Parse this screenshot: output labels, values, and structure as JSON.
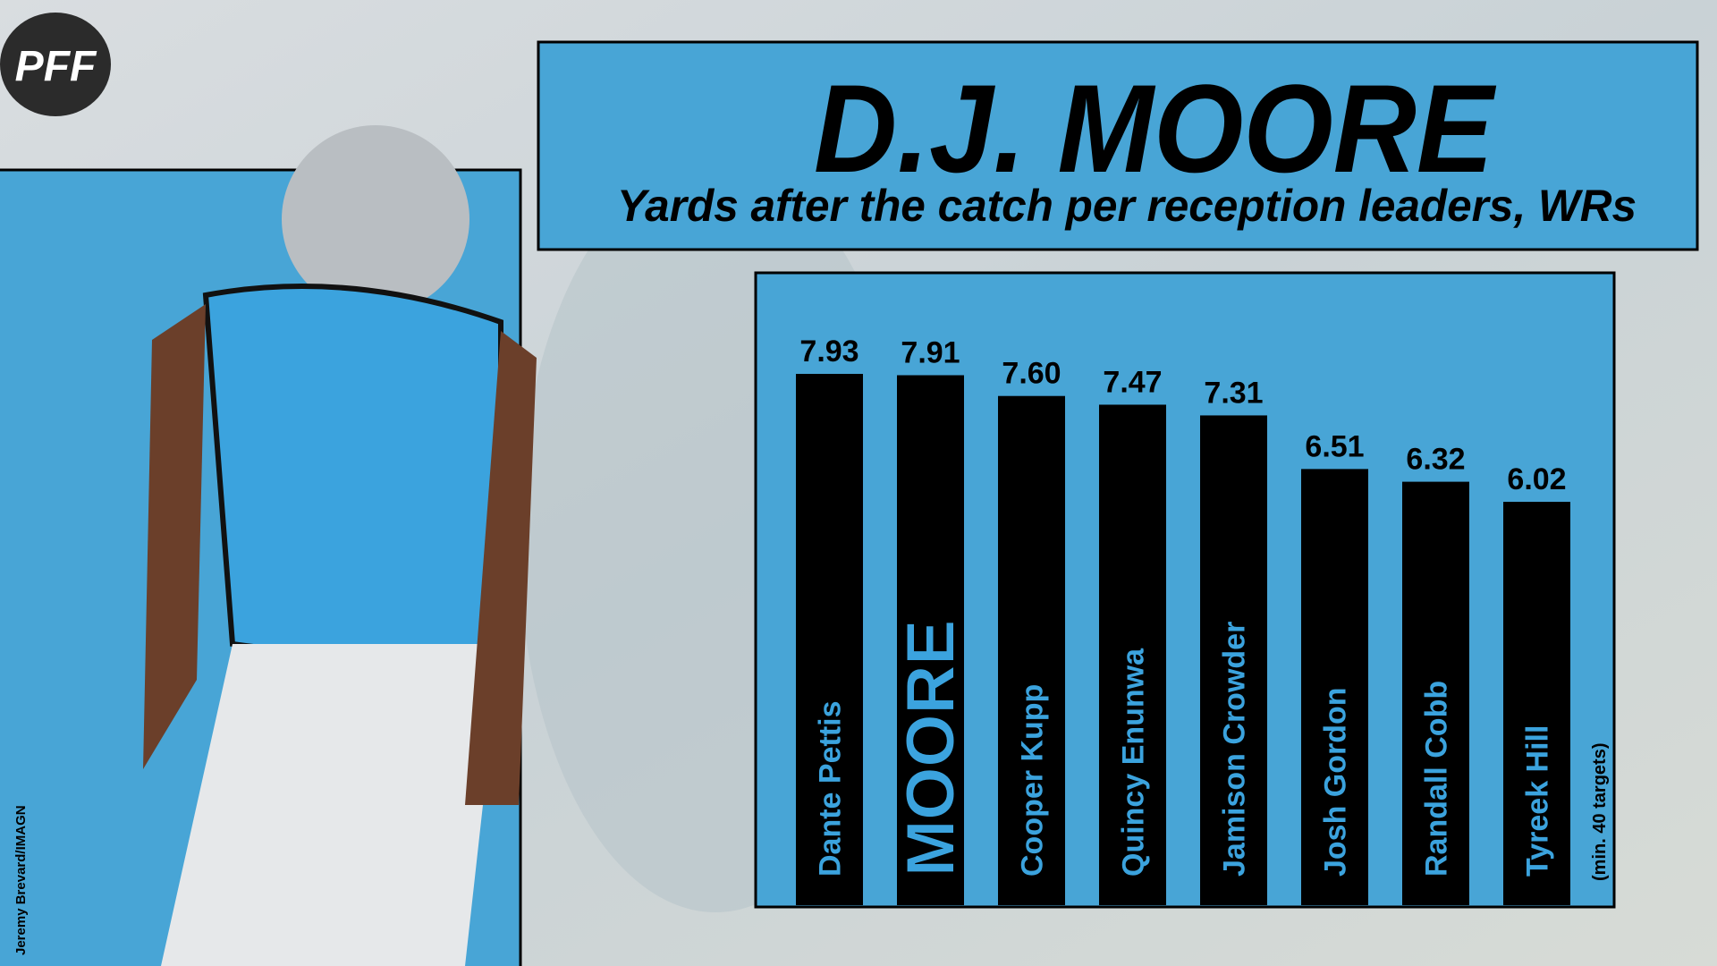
{
  "logo": "PFF",
  "photo_credit": "Jeremy Brevard/IMAGN",
  "chart_data": {
    "type": "bar",
    "title": "D.J. MOORE",
    "subtitle": "Yards after the catch per reception leaders, WRs",
    "note": "(min. 40 targets)",
    "categories": [
      "Dante Pettis",
      "MOORE",
      "Cooper Kupp",
      "Quincy Enunwa",
      "Jamison Crowder",
      "Josh Gordon",
      "Randall Cobb",
      "Tyreek Hill"
    ],
    "values": [
      7.93,
      7.91,
      7.6,
      7.47,
      7.31,
      6.51,
      6.32,
      6.02
    ],
    "value_labels": [
      "7.93",
      "7.91",
      "7.60",
      "7.47",
      "7.31",
      "6.51",
      "6.32",
      "6.02"
    ],
    "color": "#000000",
    "label_color": "#3ba3de",
    "highlight_category": "MOORE"
  }
}
